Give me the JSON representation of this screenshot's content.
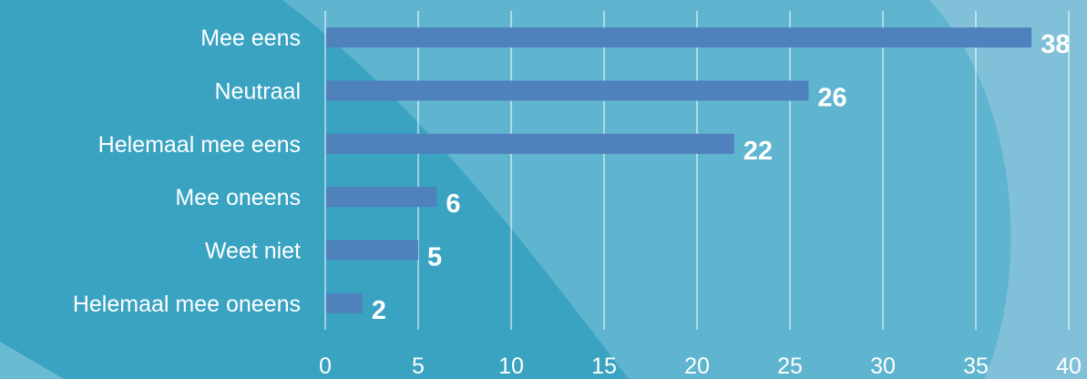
{
  "chart_data": {
    "type": "bar",
    "orientation": "horizontal",
    "categories": [
      "Mee eens",
      "Neutraal",
      "Helemaal mee eens",
      "Mee oneens",
      "Weet niet",
      "Helemaal mee oneens"
    ],
    "values": [
      38,
      26,
      22,
      6,
      5,
      2
    ],
    "xlim": [
      0,
      40
    ],
    "xticks": [
      0,
      5,
      10,
      15,
      20,
      25,
      30,
      35,
      40
    ],
    "grid": "vertical",
    "legend": "none",
    "title": "",
    "xlabel": "",
    "ylabel": ""
  },
  "colors": {
    "background": "#3aa3c2",
    "bar": "#4f81bd",
    "gridline": "#ffffff",
    "text": "#ffffff"
  }
}
